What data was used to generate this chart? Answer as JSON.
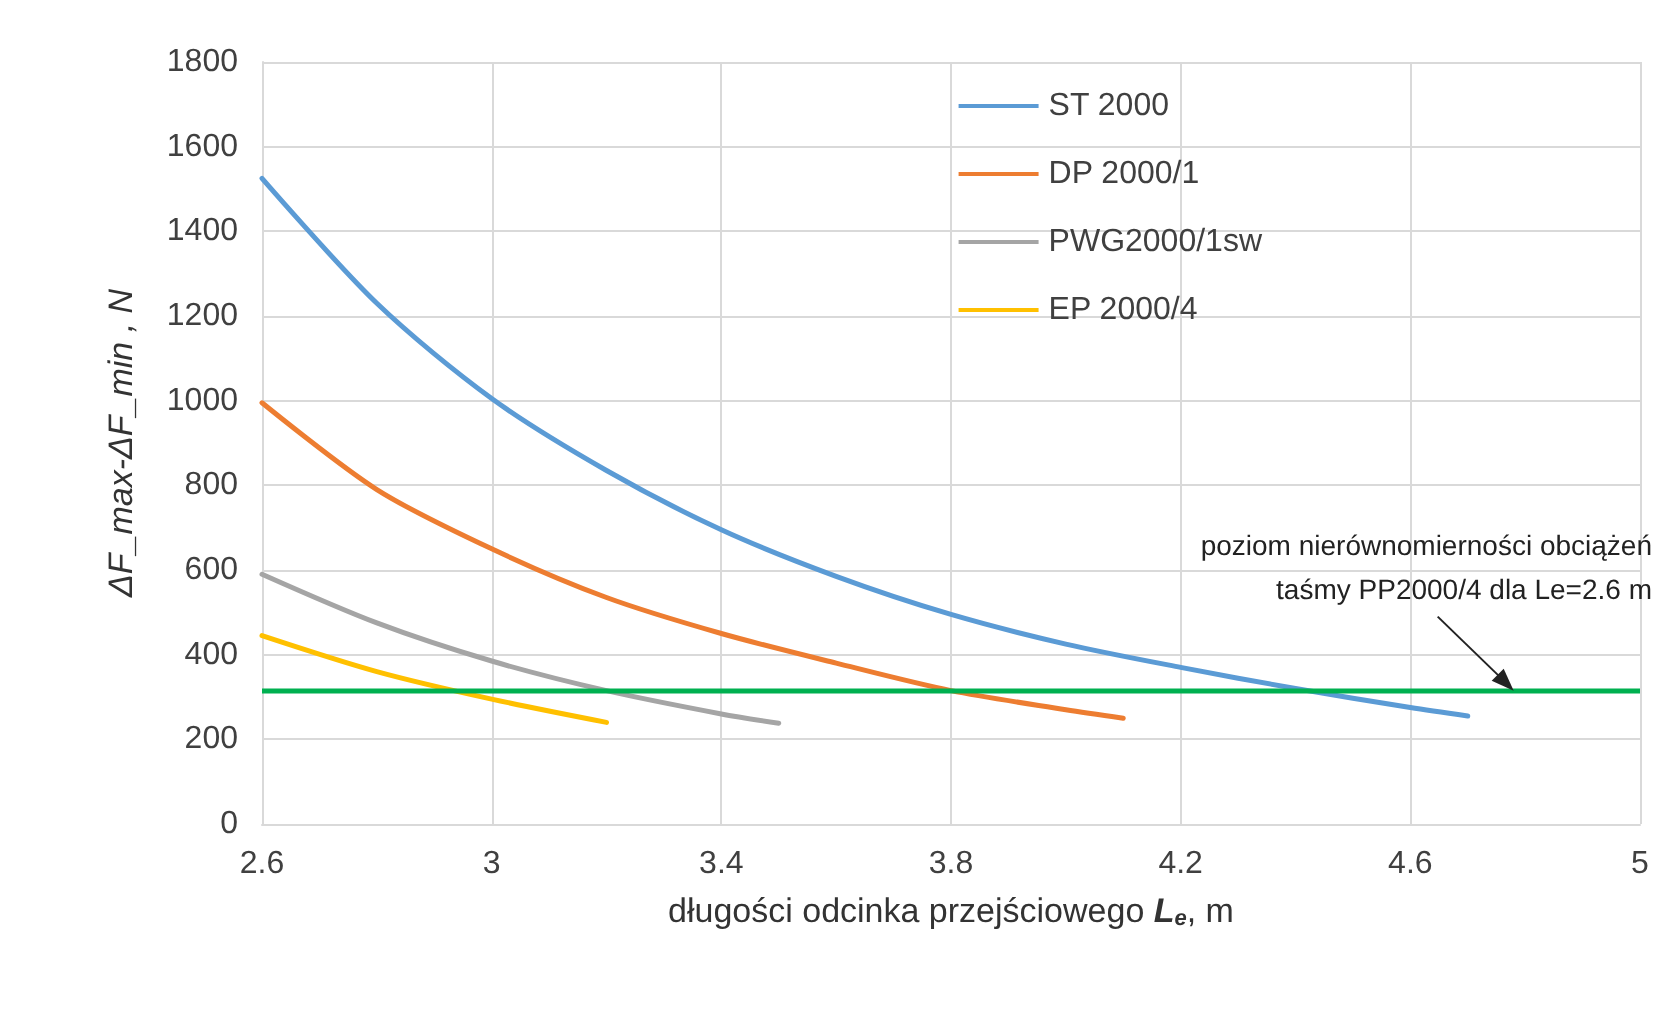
{
  "chart_data": {
    "type": "line",
    "xlabel": "długości odcinka przejściowego L$_{e}$, m",
    "ylabel": "ΔF_max-ΔF_min , N",
    "xlim": [
      2.6,
      5
    ],
    "xticks": [
      2.6,
      3,
      3.4,
      3.8,
      4.2,
      4.6,
      5
    ],
    "ylim": [
      0,
      1800
    ],
    "yticks": [
      0,
      200,
      400,
      600,
      800,
      1000,
      1200,
      1400,
      1600,
      1800
    ],
    "grid": true,
    "legend": "top right",
    "marker": "none",
    "line_style": "solid",
    "series": [
      {
        "name": "ST 2000",
        "color": "#5b9bd5",
        "x": [
          2.6,
          2.8,
          3.0,
          3.2,
          3.4,
          3.6,
          3.8,
          4.0,
          4.2,
          4.4,
          4.6,
          4.7
        ],
        "values": [
          1525,
          1230,
          1005,
          835,
          695,
          585,
          495,
          425,
          370,
          320,
          275,
          255
        ]
      },
      {
        "name": "DP 2000/1",
        "color": "#ed7d31",
        "x": [
          2.6,
          2.8,
          3.0,
          3.2,
          3.4,
          3.6,
          3.8,
          4.0,
          4.1
        ],
        "values": [
          995,
          790,
          650,
          535,
          450,
          380,
          315,
          270,
          250
        ]
      },
      {
        "name": "PWG2000/1sw",
        "color": "#a5a5a5",
        "x": [
          2.6,
          2.8,
          3.0,
          3.2,
          3.4,
          3.5
        ],
        "values": [
          590,
          475,
          385,
          315,
          260,
          238
        ]
      },
      {
        "name": "EP 2000/4",
        "color": "#ffc000",
        "x": [
          2.6,
          2.8,
          3.0,
          3.2
        ],
        "values": [
          445,
          360,
          295,
          240
        ]
      }
    ],
    "ref_lines": [
      {
        "axis": "y",
        "value": 315,
        "color": "#00b050",
        "line_style": "solid"
      }
    ],
    "annotations": [
      {
        "text": "poziom nierównomierności obciążeń\ntaśmy PP2000/4 dla Le=2.6 m",
        "x": 4.78,
        "y": 315
      }
    ]
  }
}
